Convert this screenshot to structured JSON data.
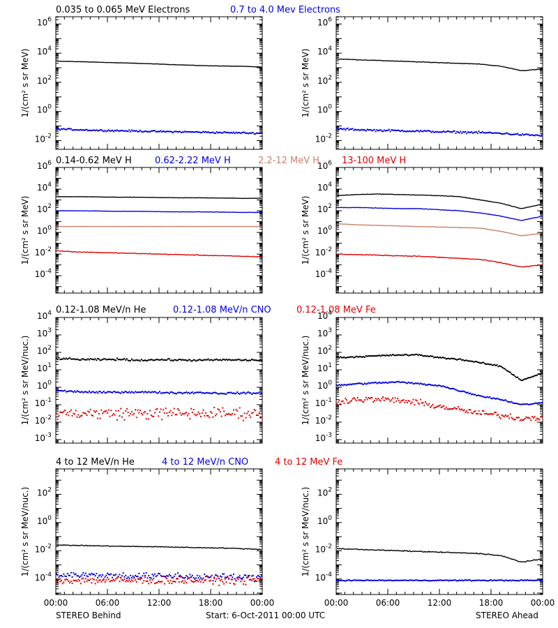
{
  "colors": {
    "black": "#000000",
    "blue": "#0000dd",
    "tan": "#c8826a",
    "red": "#e00000"
  },
  "footer": {
    "left": "STEREO Behind",
    "center": "Start:  6-Oct-2011 00:00 UTC",
    "right": "STEREO Ahead"
  },
  "chart_data": [
    {
      "type": "scatter",
      "title_labels": [
        {
          "text": "0.035 to 0.065 MeV Electrons",
          "color": "#000000"
        },
        {
          "text": "0.7 to 4.0 Mev Electrons",
          "color": "#0000dd"
        }
      ],
      "ylabel": "1/(cm² s sr MeV)",
      "yscale": "log",
      "ylim": [
        -2.6,
        6.5
      ],
      "ytick_exponents": [
        -2,
        0,
        2,
        4,
        6
      ],
      "xlabel_ticks": [
        "00:00",
        "06:00",
        "12:00",
        "18:00",
        "00:00"
      ],
      "xlim_hours": [
        0,
        24
      ],
      "panels": [
        {
          "spacecraft": "STEREO Behind",
          "series": [
            {
              "label_index": 0,
              "color": "#000000",
              "style": "line",
              "log_values": [
                3.45,
                3.42,
                3.38,
                3.34,
                3.3,
                3.25,
                3.2,
                3.15,
                3.12,
                3.1,
                3.05
              ],
              "noise": 0.02
            },
            {
              "label_index": 1,
              "color": "#0000dd",
              "style": "dots",
              "log_values": [
                -1.2,
                -1.25,
                -1.3,
                -1.32,
                -1.35,
                -1.38,
                -1.4,
                -1.42,
                -1.45,
                -1.47,
                -1.5
              ],
              "noise": 0.08
            }
          ]
        },
        {
          "spacecraft": "STEREO Ahead",
          "series": [
            {
              "label_index": 0,
              "color": "#000000",
              "style": "line",
              "log_values": [
                3.6,
                3.55,
                3.5,
                3.45,
                3.4,
                3.35,
                3.3,
                3.25,
                3.1,
                2.8,
                2.9
              ],
              "noise": 0.03
            },
            {
              "label_index": 1,
              "color": "#0000dd",
              "style": "dots",
              "log_values": [
                -1.2,
                -1.25,
                -1.3,
                -1.32,
                -1.35,
                -1.4,
                -1.42,
                -1.45,
                -1.5,
                -1.6,
                -1.65
              ],
              "noise": 0.1
            }
          ]
        }
      ]
    },
    {
      "type": "scatter",
      "title_labels": [
        {
          "text": "0.14-0.62 MeV H",
          "color": "#000000"
        },
        {
          "text": "0.62-2.22 MeV H",
          "color": "#0000dd"
        },
        {
          "text": "2.2-12 MeV H",
          "color": "#c8826a"
        },
        {
          "text": "13-100 MeV H",
          "color": "#e00000"
        }
      ],
      "ylabel": "1/(cm² s sr MeV)",
      "yscale": "log",
      "ylim": [
        -5.6,
        6.0
      ],
      "ytick_exponents": [
        -4,
        -2,
        0,
        2,
        4,
        6
      ],
      "xlabel_ticks": [
        "00:00",
        "06:00",
        "12:00",
        "18:00",
        "00:00"
      ],
      "xlim_hours": [
        0,
        24
      ],
      "panels": [
        {
          "spacecraft": "STEREO Behind",
          "series": [
            {
              "label_index": 0,
              "color": "#000000",
              "style": "line",
              "log_values": [
                3.3,
                3.3,
                3.28,
                3.25,
                3.25,
                3.22,
                3.2,
                3.2,
                3.18,
                3.15,
                3.15
              ],
              "noise": 0.02
            },
            {
              "label_index": 1,
              "color": "#0000dd",
              "style": "line",
              "log_values": [
                2.0,
                2.0,
                1.98,
                1.95,
                1.95,
                1.92,
                1.9,
                1.9,
                1.88,
                1.85,
                1.85
              ],
              "noise": 0.02
            },
            {
              "label_index": 2,
              "color": "#c8826a",
              "style": "line",
              "log_values": [
                0.55,
                0.55,
                0.55,
                0.55,
                0.55,
                0.55,
                0.55,
                0.55,
                0.55,
                0.55,
                0.55
              ],
              "noise": 0.015
            },
            {
              "label_index": 3,
              "color": "#e00000",
              "style": "line",
              "log_values": [
                -1.7,
                -1.8,
                -1.85,
                -1.9,
                -1.95,
                -2.0,
                -2.05,
                -2.1,
                -2.15,
                -2.2,
                -2.25
              ],
              "noise": 0.05
            }
          ]
        },
        {
          "spacecraft": "STEREO Ahead",
          "series": [
            {
              "label_index": 0,
              "color": "#000000",
              "style": "line",
              "log_values": [
                3.4,
                3.5,
                3.55,
                3.5,
                3.45,
                3.4,
                3.3,
                3.0,
                2.7,
                2.2,
                2.6
              ],
              "noise": 0.03
            },
            {
              "label_index": 1,
              "color": "#0000dd",
              "style": "line",
              "log_values": [
                2.3,
                2.3,
                2.25,
                2.2,
                2.2,
                2.1,
                2.0,
                1.8,
                1.5,
                1.1,
                1.5
              ],
              "noise": 0.03
            },
            {
              "label_index": 2,
              "color": "#c8826a",
              "style": "line",
              "log_values": [
                0.8,
                0.7,
                0.65,
                0.6,
                0.55,
                0.5,
                0.45,
                0.4,
                0.1,
                -0.3,
                -0.1
              ],
              "noise": 0.03
            },
            {
              "label_index": 3,
              "color": "#e00000",
              "style": "line",
              "log_values": [
                -2.0,
                -2.05,
                -2.1,
                -2.15,
                -2.2,
                -2.3,
                -2.4,
                -2.5,
                -2.8,
                -3.2,
                -3.0
              ],
              "noise": 0.06
            }
          ]
        }
      ]
    },
    {
      "type": "scatter",
      "title_labels": [
        {
          "text": "0.12-1.08 MeV/n He",
          "color": "#000000"
        },
        {
          "text": "0.12-1.08 MeV/n CNO",
          "color": "#0000dd"
        },
        {
          "text": "0.12-1.08 MeV Fe",
          "color": "#e00000"
        }
      ],
      "ylabel": "1/(cm² s sr MeV/nuc.)",
      "yscale": "log",
      "ylim": [
        -3.2,
        4.0
      ],
      "ytick_exponents": [
        -3,
        -2,
        -1,
        0,
        1,
        2,
        3,
        4
      ],
      "xlabel_ticks": [
        "00:00",
        "06:00",
        "12:00",
        "18:00",
        "00:00"
      ],
      "xlim_hours": [
        0,
        24
      ],
      "panels": [
        {
          "spacecraft": "STEREO Behind",
          "series": [
            {
              "label_index": 0,
              "color": "#000000",
              "style": "dots",
              "log_values": [
                1.65,
                1.6,
                1.58,
                1.6,
                1.55,
                1.58,
                1.56,
                1.55,
                1.57,
                1.56,
                1.55
              ],
              "noise": 0.08
            },
            {
              "label_index": 1,
              "color": "#0000dd",
              "style": "dots",
              "log_values": [
                -0.2,
                -0.25,
                -0.3,
                -0.28,
                -0.27,
                -0.3,
                -0.32,
                -0.3,
                -0.35,
                -0.33,
                -0.35
              ],
              "noise": 0.08
            },
            {
              "label_index": 2,
              "color": "#e00000",
              "style": "dots",
              "log_values": [
                -1.5,
                -1.5,
                -1.5,
                -1.5,
                -1.5,
                -1.5,
                -1.5,
                -1.5,
                -1.5,
                -1.5,
                -1.5
              ],
              "noise": 0.5
            }
          ]
        },
        {
          "spacecraft": "STEREO Ahead",
          "series": [
            {
              "label_index": 0,
              "color": "#000000",
              "style": "dots",
              "log_values": [
                1.7,
                1.75,
                1.8,
                1.85,
                1.85,
                1.7,
                1.6,
                1.4,
                1.2,
                0.4,
                0.8
              ],
              "noise": 0.06
            },
            {
              "label_index": 1,
              "color": "#0000dd",
              "style": "dots",
              "log_values": [
                0.1,
                0.2,
                0.25,
                0.3,
                0.2,
                0.1,
                -0.2,
                -0.5,
                -0.7,
                -1.0,
                -0.9
              ],
              "noise": 0.07
            },
            {
              "label_index": 2,
              "color": "#e00000",
              "style": "dots",
              "log_values": [
                -0.8,
                -0.7,
                -0.7,
                -0.75,
                -0.9,
                -1.1,
                -1.3,
                -1.5,
                -1.6,
                -1.8,
                -1.7
              ],
              "noise": 0.25
            }
          ]
        }
      ]
    },
    {
      "type": "scatter",
      "title_labels": [
        {
          "text": "4 to 12 MeV/n He",
          "color": "#000000"
        },
        {
          "text": "4 to 12 MeV/n CNO",
          "color": "#0000dd"
        },
        {
          "text": "4 to 12 MeV Fe",
          "color": "#e00000"
        }
      ],
      "ylabel": "1/(cm² s sr MeV/nuc.)",
      "yscale": "log",
      "ylim": [
        -5.1,
        3.8
      ],
      "ytick_exponents": [
        -4,
        -2,
        0,
        2
      ],
      "xlabel_ticks": [
        "00:00",
        "06:00",
        "12:00",
        "18:00",
        "00:00"
      ],
      "xlim_hours": [
        0,
        24
      ],
      "panels": [
        {
          "spacecraft": "STEREO Behind",
          "series": [
            {
              "label_index": 0,
              "color": "#000000",
              "style": "line",
              "log_values": [
                -1.6,
                -1.62,
                -1.65,
                -1.68,
                -1.7,
                -1.72,
                -1.75,
                -1.78,
                -1.8,
                -1.85,
                -1.9
              ],
              "noise": 0.04
            },
            {
              "label_index": 1,
              "color": "#0000dd",
              "style": "dots",
              "log_values": [
                -3.7,
                -3.7,
                -3.75,
                -3.75,
                -3.8,
                -3.8,
                -3.8,
                -3.85,
                -3.85,
                -3.9,
                -3.9
              ],
              "noise": 0.35
            },
            {
              "label_index": 2,
              "color": "#e00000",
              "style": "dots",
              "log_values": [
                -4.1,
                -4.1,
                -4.1,
                -4.1,
                -4.1,
                -4.1,
                -4.1,
                -4.1,
                -4.1,
                -4.1,
                -4.1
              ],
              "noise": 0.4
            }
          ]
        },
        {
          "spacecraft": "STEREO Ahead",
          "series": [
            {
              "label_index": 0,
              "color": "#000000",
              "style": "line",
              "log_values": [
                -1.85,
                -1.9,
                -1.95,
                -2.0,
                -2.05,
                -2.1,
                -2.15,
                -2.2,
                -2.35,
                -2.8,
                -2.6
              ],
              "noise": 0.05
            },
            {
              "label_index": 1,
              "color": "#0000dd",
              "style": "dots",
              "log_values": [
                -4.1,
                -4.1,
                -4.1,
                -4.1,
                -4.1,
                -4.1,
                -4.1,
                -4.1,
                -4.1,
                -4.1,
                -4.1
              ],
              "noise": 0.05
            }
          ]
        }
      ]
    }
  ]
}
